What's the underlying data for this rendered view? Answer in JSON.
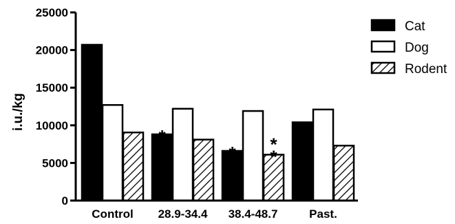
{
  "chart_data": {
    "type": "bar",
    "ylabel": "i.u./kg",
    "xlabel": "",
    "title": "",
    "ylim": [
      0,
      25000
    ],
    "yticks": [
      0,
      5000,
      10000,
      15000,
      20000,
      25000
    ],
    "categories": [
      "Control",
      "28.9-34.4",
      "38.4-48.7",
      "Past."
    ],
    "series": [
      {
        "name": "Cat",
        "style": "solid",
        "color": "#000000",
        "values": [
          20700,
          8800,
          6600,
          10400
        ]
      },
      {
        "name": "Dog",
        "style": "open",
        "color": "#ffffff",
        "values": [
          12700,
          12200,
          11900,
          12100
        ]
      },
      {
        "name": "Rodent",
        "style": "hatched",
        "color": "#ffffff",
        "values": [
          9050,
          8100,
          6100,
          7300
        ]
      }
    ],
    "annotations": [
      {
        "category": "28.9-34.4",
        "series": "Cat",
        "text": "*"
      },
      {
        "category": "38.4-48.7",
        "series": "Cat",
        "text": "*"
      },
      {
        "category": "38.4-48.7",
        "series": "Rodent",
        "text": "**"
      }
    ],
    "legend": {
      "position": "right"
    },
    "grid": false
  }
}
